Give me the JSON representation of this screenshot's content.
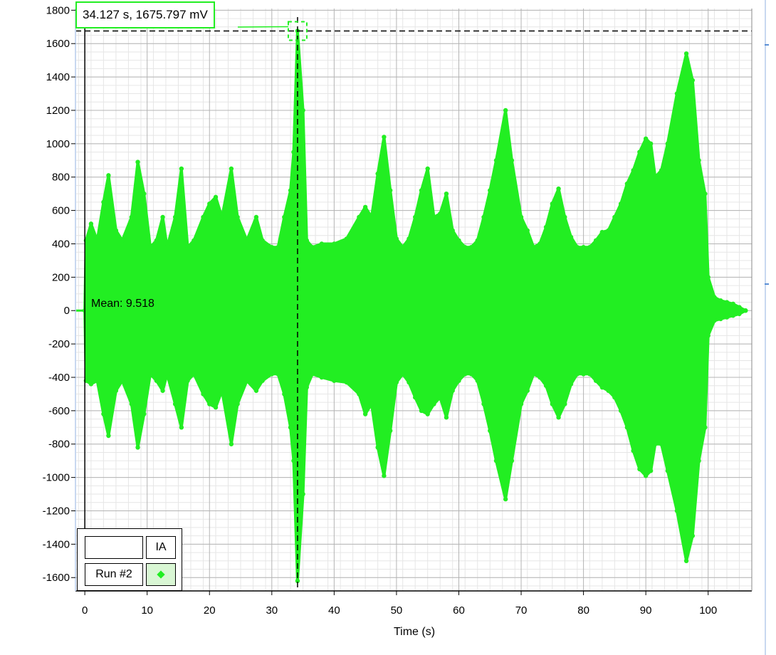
{
  "chart_data": {
    "type": "line",
    "xlabel": "Time (s)",
    "ylabel": "",
    "xlim": [
      -1.5,
      107
    ],
    "ylim": [
      -1680,
      1810
    ],
    "xticks": [
      0,
      10,
      20,
      30,
      40,
      50,
      60,
      70,
      80,
      90,
      100
    ],
    "yticks": [
      1800,
      1600,
      1400,
      1200,
      1000,
      800,
      600,
      400,
      200,
      0,
      -200,
      -400,
      -600,
      -800,
      -1000,
      -1200,
      -1400,
      -1600
    ],
    "series": [
      {
        "name": "Run #2",
        "color": "#22ee22",
        "envelope_upper": [
          [
            0,
            0
          ],
          [
            0.2,
            420
          ],
          [
            1,
            520
          ],
          [
            2,
            420
          ],
          [
            3,
            650
          ],
          [
            3.8,
            810
          ],
          [
            5,
            480
          ],
          [
            6,
            420
          ],
          [
            7.5,
            560
          ],
          [
            8.5,
            890
          ],
          [
            9.5,
            700
          ],
          [
            10.5,
            380
          ],
          [
            11.5,
            420
          ],
          [
            12.5,
            560
          ],
          [
            13.2,
            380
          ],
          [
            14.5,
            560
          ],
          [
            15.5,
            850
          ],
          [
            16.5,
            380
          ],
          [
            17.5,
            420
          ],
          [
            19,
            560
          ],
          [
            20,
            640
          ],
          [
            21,
            680
          ],
          [
            22,
            560
          ],
          [
            23.5,
            850
          ],
          [
            24.5,
            560
          ],
          [
            26,
            420
          ],
          [
            27.5,
            560
          ],
          [
            28.5,
            420
          ],
          [
            30,
            380
          ],
          [
            31,
            380
          ],
          [
            32,
            560
          ],
          [
            33,
            720
          ],
          [
            33.5,
            950
          ],
          [
            34.127,
            1675.797
          ],
          [
            35,
            1200
          ],
          [
            35.6,
            420
          ],
          [
            36.5,
            380
          ],
          [
            38,
            400
          ],
          [
            40,
            400
          ],
          [
            42,
            430
          ],
          [
            44,
            560
          ],
          [
            45,
            620
          ],
          [
            46,
            560
          ],
          [
            47,
            820
          ],
          [
            48,
            1040
          ],
          [
            49,
            720
          ],
          [
            50,
            430
          ],
          [
            51,
            380
          ],
          [
            52,
            430
          ],
          [
            53,
            560
          ],
          [
            54,
            720
          ],
          [
            55,
            850
          ],
          [
            56,
            560
          ],
          [
            57,
            580
          ],
          [
            58,
            700
          ],
          [
            59,
            480
          ],
          [
            60,
            420
          ],
          [
            61,
            380
          ],
          [
            62,
            380
          ],
          [
            63,
            420
          ],
          [
            64,
            560
          ],
          [
            65,
            720
          ],
          [
            66,
            900
          ],
          [
            67.5,
            1200
          ],
          [
            68.5,
            900
          ],
          [
            70,
            560
          ],
          [
            71,
            480
          ],
          [
            72,
            380
          ],
          [
            73,
            400
          ],
          [
            74,
            500
          ],
          [
            75,
            640
          ],
          [
            76,
            730
          ],
          [
            77,
            560
          ],
          [
            78,
            440
          ],
          [
            79,
            380
          ],
          [
            80,
            380
          ],
          [
            81,
            380
          ],
          [
            82,
            420
          ],
          [
            83,
            470
          ],
          [
            84,
            480
          ],
          [
            85,
            560
          ],
          [
            86,
            640
          ],
          [
            87,
            760
          ],
          [
            88,
            840
          ],
          [
            89,
            950
          ],
          [
            90,
            1030
          ],
          [
            90.8,
            1000
          ],
          [
            91.5,
            800
          ],
          [
            92.5,
            840
          ],
          [
            93.5,
            1000
          ],
          [
            95,
            1300
          ],
          [
            96.5,
            1540
          ],
          [
            97.5,
            1380
          ],
          [
            98.5,
            900
          ],
          [
            99.5,
            700
          ],
          [
            100,
            200
          ],
          [
            101,
            80
          ],
          [
            102,
            60
          ],
          [
            103,
            50
          ],
          [
            104,
            40
          ],
          [
            105,
            20
          ],
          [
            106,
            0
          ]
        ],
        "envelope_lower": [
          [
            0,
            0
          ],
          [
            0.2,
            -420
          ],
          [
            1,
            -440
          ],
          [
            2,
            -420
          ],
          [
            3,
            -620
          ],
          [
            3.8,
            -750
          ],
          [
            5,
            -480
          ],
          [
            6,
            -420
          ],
          [
            7.5,
            -560
          ],
          [
            8.5,
            -820
          ],
          [
            9.5,
            -620
          ],
          [
            10.5,
            -380
          ],
          [
            11.5,
            -420
          ],
          [
            12.5,
            -480
          ],
          [
            13.2,
            -380
          ],
          [
            14.5,
            -560
          ],
          [
            15.5,
            -700
          ],
          [
            16.5,
            -420
          ],
          [
            17.5,
            -380
          ],
          [
            19,
            -500
          ],
          [
            20,
            -560
          ],
          [
            21,
            -580
          ],
          [
            22,
            -480
          ],
          [
            23.5,
            -800
          ],
          [
            24.5,
            -560
          ],
          [
            26,
            -420
          ],
          [
            27.5,
            -480
          ],
          [
            28.5,
            -420
          ],
          [
            30,
            -380
          ],
          [
            31,
            -380
          ],
          [
            32,
            -500
          ],
          [
            33,
            -700
          ],
          [
            33.5,
            -900
          ],
          [
            34.127,
            -1620
          ],
          [
            35,
            -1100
          ],
          [
            35.6,
            -460
          ],
          [
            36.5,
            -380
          ],
          [
            38,
            -400
          ],
          [
            40,
            -420
          ],
          [
            42,
            -430
          ],
          [
            44,
            -500
          ],
          [
            45,
            -620
          ],
          [
            46,
            -560
          ],
          [
            47,
            -820
          ],
          [
            48,
            -990
          ],
          [
            49,
            -720
          ],
          [
            50,
            -430
          ],
          [
            51,
            -380
          ],
          [
            52,
            -430
          ],
          [
            53,
            -520
          ],
          [
            54,
            -600
          ],
          [
            55,
            -620
          ],
          [
            56,
            -560
          ],
          [
            57,
            -520
          ],
          [
            58,
            -640
          ],
          [
            59,
            -480
          ],
          [
            60,
            -420
          ],
          [
            61,
            -380
          ],
          [
            62,
            -380
          ],
          [
            63,
            -420
          ],
          [
            64,
            -560
          ],
          [
            65,
            -720
          ],
          [
            66,
            -900
          ],
          [
            67.5,
            -1130
          ],
          [
            68.5,
            -900
          ],
          [
            70,
            -560
          ],
          [
            71,
            -480
          ],
          [
            72,
            -380
          ],
          [
            73,
            -400
          ],
          [
            74,
            -450
          ],
          [
            75,
            -560
          ],
          [
            76,
            -640
          ],
          [
            77,
            -560
          ],
          [
            78,
            -440
          ],
          [
            79,
            -380
          ],
          [
            80,
            -380
          ],
          [
            81,
            -380
          ],
          [
            82,
            -420
          ],
          [
            83,
            -460
          ],
          [
            84,
            -480
          ],
          [
            85,
            -520
          ],
          [
            86,
            -600
          ],
          [
            87,
            -700
          ],
          [
            88,
            -840
          ],
          [
            89,
            -950
          ],
          [
            90,
            -990
          ],
          [
            90.8,
            -960
          ],
          [
            91.5,
            -800
          ],
          [
            92.5,
            -800
          ],
          [
            93.5,
            -960
          ],
          [
            95,
            -1200
          ],
          [
            96.5,
            -1500
          ],
          [
            97.5,
            -1350
          ],
          [
            98.5,
            -900
          ],
          [
            99.5,
            -700
          ],
          [
            100,
            -150
          ],
          [
            101,
            -60
          ],
          [
            102,
            -50
          ],
          [
            103,
            -40
          ],
          [
            104,
            -30
          ],
          [
            105,
            -20
          ],
          [
            106,
            0
          ]
        ]
      }
    ],
    "cursor": {
      "x": 34.127,
      "y": 1675.797
    },
    "readout_label": "34.127 s, 1675.797 mV",
    "mean_label": "Mean: 9.518",
    "legend_header": "IA",
    "legend_run": "Run #2",
    "grid": true,
    "legend_position": "bottom-left"
  }
}
